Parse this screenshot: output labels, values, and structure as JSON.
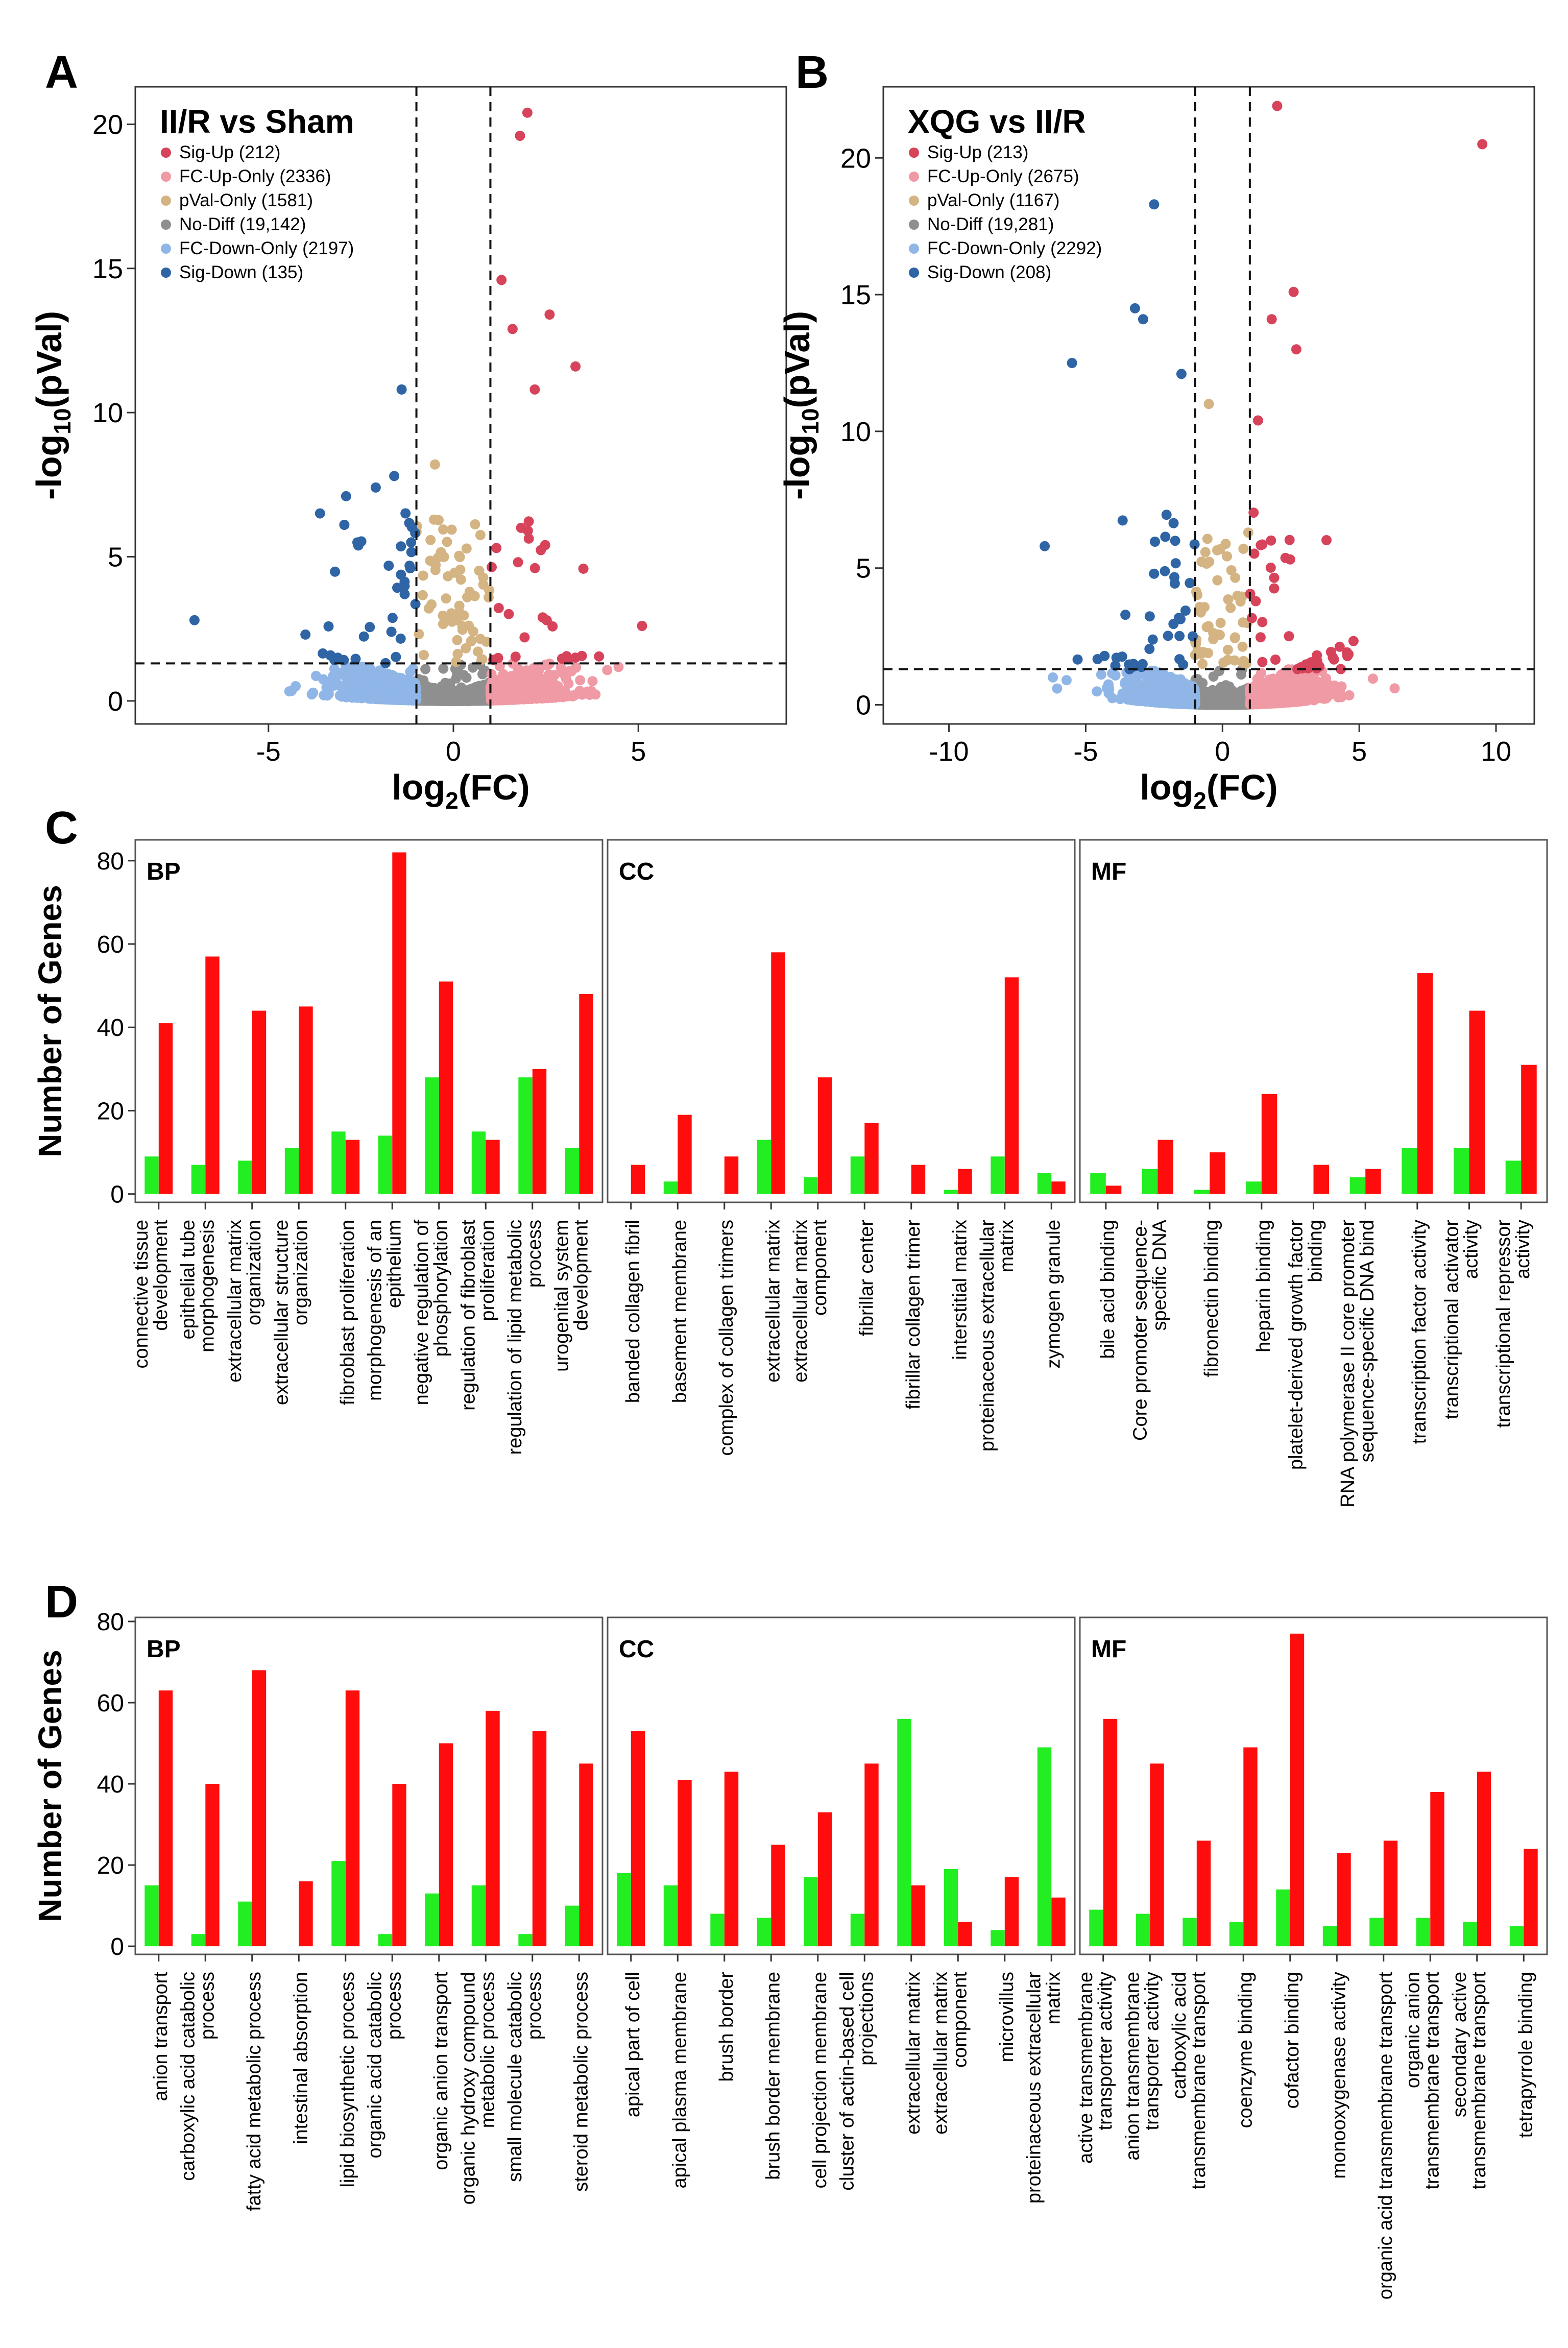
{
  "figure_title": "",
  "chart_data": [
    {
      "type": "scatter",
      "panel": "A",
      "title": "II/R vs Sham",
      "xlabel": "log2(FC)",
      "ylabel": "-log10(pVal)",
      "xlim": [
        -8.6,
        9
      ],
      "ylim": [
        -0.8,
        21.3
      ],
      "xticks": [
        -5,
        0,
        5
      ],
      "yticks": [
        0,
        5,
        10,
        15,
        20
      ],
      "fc_threshold": 1,
      "pval_threshold": 1.3,
      "legend": [
        {
          "label": "Sig-Up (212)",
          "color": "#d6435a"
        },
        {
          "label": "FC-Up-Only (2336)",
          "color": "#ef9aa5"
        },
        {
          "label": "pVal-Only (1581)",
          "color": "#d4b483"
        },
        {
          "label": "No-Diff (19,142)",
          "color": "#8f8f8f"
        },
        {
          "label": "FC-Down-Only (2197)",
          "color": "#8fb6e6"
        },
        {
          "label": "Sig-Down (135)",
          "color": "#2f64a5"
        }
      ],
      "highlight_points": [
        {
          "x": 2.0,
          "y": 20.4,
          "group": "up"
        },
        {
          "x": 1.8,
          "y": 19.6,
          "group": "up"
        },
        {
          "x": 1.3,
          "y": 14.6,
          "group": "up"
        },
        {
          "x": 2.6,
          "y": 13.4,
          "group": "up"
        },
        {
          "x": 1.6,
          "y": 12.9,
          "group": "up"
        },
        {
          "x": 3.3,
          "y": 11.6,
          "group": "up"
        },
        {
          "x": 2.2,
          "y": 10.8,
          "group": "up"
        },
        {
          "x": 5.1,
          "y": 2.6,
          "group": "up"
        },
        {
          "x": -1.4,
          "y": 10.8,
          "group": "down"
        },
        {
          "x": -1.6,
          "y": 7.8,
          "group": "down"
        },
        {
          "x": -2.1,
          "y": 7.4,
          "group": "down"
        },
        {
          "x": -2.9,
          "y": 7.1,
          "group": "down"
        },
        {
          "x": -7.0,
          "y": 2.8,
          "group": "down"
        },
        {
          "x": -4.0,
          "y": 2.3,
          "group": "down"
        },
        {
          "x": -0.5,
          "y": 8.2,
          "group": "pval"
        }
      ]
    },
    {
      "type": "scatter",
      "panel": "B",
      "title": "XQG vs II/R",
      "xlabel": "log2(FC)",
      "ylabel": "-log10(pVal)",
      "xlim": [
        -12.4,
        11.4
      ],
      "ylim": [
        -0.7,
        22.6
      ],
      "xticks": [
        -10,
        -5,
        0,
        5,
        10
      ],
      "yticks": [
        0,
        5,
        10,
        15,
        20
      ],
      "fc_threshold": 1,
      "pval_threshold": 1.3,
      "legend": [
        {
          "label": "Sig-Up (213)",
          "color": "#d6435a"
        },
        {
          "label": "FC-Up-Only (2675)",
          "color": "#ef9aa5"
        },
        {
          "label": "pVal-Only (1167)",
          "color": "#d4b483"
        },
        {
          "label": "No-Diff (19,281)",
          "color": "#8f8f8f"
        },
        {
          "label": "FC-Down-Only (2292)",
          "color": "#8fb6e6"
        },
        {
          "label": "Sig-Down (208)",
          "color": "#2f64a5"
        }
      ],
      "highlight_points": [
        {
          "x": 2.0,
          "y": 21.9,
          "group": "up"
        },
        {
          "x": 9.5,
          "y": 20.5,
          "group": "up"
        },
        {
          "x": 2.6,
          "y": 15.1,
          "group": "up"
        },
        {
          "x": 1.8,
          "y": 14.1,
          "group": "up"
        },
        {
          "x": 2.7,
          "y": 13.0,
          "group": "up"
        },
        {
          "x": 1.3,
          "y": 10.4,
          "group": "up"
        },
        {
          "x": -2.5,
          "y": 18.3,
          "group": "down"
        },
        {
          "x": -3.2,
          "y": 14.5,
          "group": "down"
        },
        {
          "x": -2.9,
          "y": 14.1,
          "group": "down"
        },
        {
          "x": -5.5,
          "y": 12.5,
          "group": "down"
        },
        {
          "x": -1.5,
          "y": 12.1,
          "group": "down"
        },
        {
          "x": -6.5,
          "y": 5.8,
          "group": "down"
        },
        {
          "x": -6.2,
          "y": 1.0,
          "group": "fcdown"
        },
        {
          "x": -5.7,
          "y": 0.9,
          "group": "fcdown"
        },
        {
          "x": -0.5,
          "y": 11.0,
          "group": "pval"
        }
      ]
    },
    {
      "type": "bar",
      "panel": "C",
      "ylabel": "Number of Genes",
      "ylim": [
        -2,
        85
      ],
      "yticks": [
        0,
        20,
        40,
        60,
        80
      ],
      "series_colors": {
        "green": "#22ee22",
        "red": "#ff0d0d"
      },
      "groups": [
        {
          "label": "BP",
          "categories": [
            "connective tissue development",
            "epithelial tube morphogenesis",
            "extracellular matrix organization",
            "extracellular structure organization",
            "fibroblast proliferation",
            "morphogenesis of an epithelium",
            "negative regulation of phosphorylation",
            "regulation of fibroblast proliferation",
            "regulation of lipid metabolic process",
            "urogenital system development"
          ],
          "tick_lines": [
            [
              "connective tissue",
              "development"
            ],
            [
              "epithelial tube",
              "morphogenesis"
            ],
            [
              "extracellular matrix",
              "organization"
            ],
            [
              "extracellular structure",
              "organization"
            ],
            [
              "fibroblast proliferation"
            ],
            [
              "morphogenesis of an",
              "epithelium"
            ],
            [
              "negative regulation of",
              "phosphorylation"
            ],
            [
              "regulation of fibroblast",
              "proliferation"
            ],
            [
              "regulation of lipid metabolic",
              "process"
            ],
            [
              "urogenital system",
              "development"
            ]
          ],
          "green": [
            9,
            7,
            8,
            11,
            15,
            14,
            28,
            15,
            28,
            11
          ],
          "red": [
            41,
            57,
            44,
            45,
            13,
            82,
            51,
            13,
            30,
            48
          ]
        },
        {
          "label": "CC",
          "categories": [
            "banded collagen fibril",
            "basement membrane",
            "complex of collagen trimers",
            "extracellular matrix",
            "extracellular matrix component",
            "fibrillar center",
            "fibrillar collagen trimer",
            "interstitial matrix",
            "proteinaceous extracellular matrix",
            "zymogen granule"
          ],
          "tick_lines": [
            [
              "banded collagen fibril"
            ],
            [
              "basement membrane"
            ],
            [
              "complex of collagen trimers"
            ],
            [
              "extracellular matrix"
            ],
            [
              "extracellular matrix",
              "component"
            ],
            [
              "fibrillar center"
            ],
            [
              "fibrillar collagen trimer"
            ],
            [
              "interstitial matrix"
            ],
            [
              "proteinaceous extracellular",
              "matrix"
            ],
            [
              "zymogen granule"
            ]
          ],
          "green": [
            0,
            3,
            0,
            13,
            4,
            9,
            0,
            1,
            9,
            5
          ],
          "red": [
            7,
            19,
            9,
            58,
            28,
            17,
            7,
            6,
            52,
            3
          ]
        },
        {
          "label": "MF",
          "categories": [
            "bile acid binding",
            "Core promoter sequence-specific DNA",
            "fibronectin binding",
            "heparin binding",
            "platelet-derived growth factor binding",
            "RNA polymerase II core promoter sequence-specific DNA bind",
            "transcription factor activity",
            "transcriptional activator activity",
            "transcriptional repressor activity"
          ],
          "tick_lines": [
            [
              "bile acid binding"
            ],
            [
              "Core promoter sequence-",
              "specific DNA"
            ],
            [
              "fibronectin binding"
            ],
            [
              "heparin binding"
            ],
            [
              "platelet-derived growth factor",
              "binding"
            ],
            [
              "RNA polymerase II core promoter",
              "sequence-specific DNA bind"
            ],
            [
              "transcription factor activity"
            ],
            [
              "transcriptional activator",
              "activity"
            ],
            [
              "transcriptional repressor",
              "activity"
            ]
          ],
          "green": [
            5,
            6,
            1,
            3,
            0,
            4,
            11,
            11,
            8
          ],
          "red": [
            2,
            13,
            10,
            24,
            7,
            6,
            53,
            44,
            31
          ]
        }
      ]
    },
    {
      "type": "bar",
      "panel": "D",
      "ylabel": "Number of Genes",
      "ylim": [
        -2,
        81
      ],
      "yticks": [
        0,
        20,
        40,
        60,
        80
      ],
      "series_colors": {
        "green": "#22ee22",
        "red": "#ff0d0d"
      },
      "groups": [
        {
          "label": "BP",
          "categories": [
            "anion transport",
            "carboxylic acid catabolic process",
            "fatty acid metabolic process",
            "intestinal absorption",
            "lipid biosynthetic process",
            "organic acid catabolic process",
            "organic anion transport",
            "organic hydroxy compound metabolic process",
            "small molecule catabolic process",
            "steroid metabolic process"
          ],
          "tick_lines": [
            [
              "anion transport"
            ],
            [
              "carboxylic acid catabolic",
              "process"
            ],
            [
              "fatty acid metabolic process"
            ],
            [
              "intestinal absorption"
            ],
            [
              "lipid biosynthetic process"
            ],
            [
              "organic acid catabolic",
              "process"
            ],
            [
              "organic anion transport"
            ],
            [
              "organic hydroxy compound",
              "metabolic process"
            ],
            [
              "small molecule catabolic",
              "process"
            ],
            [
              "steroid metabolic process"
            ]
          ],
          "green": [
            15,
            3,
            11,
            0,
            21,
            3,
            13,
            15,
            3,
            10
          ],
          "red": [
            63,
            40,
            68,
            16,
            63,
            40,
            50,
            58,
            53,
            45
          ]
        },
        {
          "label": "CC",
          "categories": [
            "apical part of cell",
            "apical plasma membrane",
            "brush border",
            "brush border membrane",
            "cell projection membrane",
            "cluster of actin-based cell projections",
            "extracellular matrix",
            "extracellular matrix component",
            "microvillus",
            "proteinaceous extracellular matrix"
          ],
          "tick_lines": [
            [
              "apical part of cell"
            ],
            [
              "apical plasma membrane"
            ],
            [
              "brush border"
            ],
            [
              "brush border membrane"
            ],
            [
              "cell projection membrane"
            ],
            [
              "cluster of actin-based cell",
              "projections"
            ],
            [
              "extracellular matrix"
            ],
            [
              "extracellular matrix",
              "component"
            ],
            [
              "microvillus"
            ],
            [
              "proteinaceous extracellular",
              "matrix"
            ]
          ],
          "green": [
            18,
            15,
            8,
            7,
            17,
            8,
            56,
            19,
            4,
            49
          ],
          "red": [
            53,
            41,
            43,
            25,
            33,
            45,
            15,
            6,
            17,
            12
          ]
        },
        {
          "label": "MF",
          "categories": [
            "active transmembrane transporter activity",
            "anion transmembrane transporter activity",
            "carboxylic acid transmembrane transport",
            "coenzyme binding",
            "cofactor binding",
            "monooxygenase activity",
            "organic acid transmembrane transport",
            "organic anion transmembrane transport",
            "secondary active transmembrane transport",
            "tetrapyrrole binding"
          ],
          "tick_lines": [
            [
              "active transmembrane",
              "transporter activity"
            ],
            [
              "anion transmembrane",
              "transporter activity"
            ],
            [
              "carboxylic acid",
              "transmembrane transport"
            ],
            [
              "coenzyme binding"
            ],
            [
              "cofactor binding"
            ],
            [
              "monooxygenase activity"
            ],
            [
              "organic acid transmembrane transport"
            ],
            [
              "organic anion",
              "transmembrane transport"
            ],
            [
              "secondary active",
              "transmembrane transport"
            ],
            [
              "tetrapyrrole binding"
            ]
          ],
          "green": [
            9,
            8,
            7,
            6,
            14,
            5,
            7,
            7,
            6,
            5
          ],
          "red": [
            56,
            45,
            26,
            49,
            77,
            23,
            26,
            38,
            43,
            24
          ]
        }
      ]
    }
  ]
}
